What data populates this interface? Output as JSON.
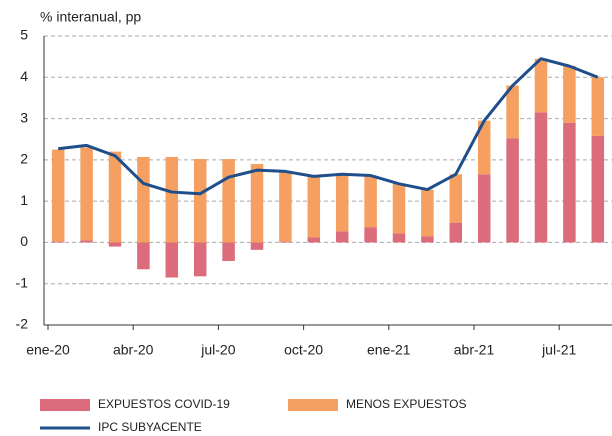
{
  "chart_data": {
    "type": "bar",
    "stacked": true,
    "y_label": "% interanual, pp",
    "categories": [
      "ene-20",
      null,
      null,
      "abr-20",
      null,
      null,
      "jul-20",
      null,
      null,
      "oct-20",
      null,
      null,
      "ene-21",
      null,
      null,
      "abr-21",
      null,
      null,
      "jul-21",
      null
    ],
    "series": [
      {
        "name": "EXPUESTOS COVID-19",
        "color": "#dc6b7c",
        "type": "bar",
        "values": [
          0.02,
          0.05,
          -0.1,
          -0.65,
          -0.85,
          -0.82,
          -0.45,
          -0.18,
          0.02,
          0.12,
          0.27,
          0.37,
          0.22,
          0.15,
          0.48,
          1.65,
          2.52,
          3.15,
          2.9,
          2.58
        ]
      },
      {
        "name": "MENOS EXPUESTOS",
        "color": "#f5a061",
        "type": "bar",
        "values": [
          2.23,
          2.25,
          2.2,
          2.07,
          2.07,
          2.02,
          2.02,
          1.9,
          1.7,
          1.5,
          1.38,
          1.25,
          1.2,
          1.13,
          1.17,
          1.3,
          1.28,
          1.3,
          1.38,
          1.42
        ]
      },
      {
        "name": "IPC SUBYACENTE",
        "color": "#1f4e8c",
        "type": "line",
        "values": [
          2.27,
          2.35,
          2.1,
          1.43,
          1.22,
          1.18,
          1.58,
          1.75,
          1.72,
          1.6,
          1.65,
          1.62,
          1.42,
          1.28,
          1.65,
          2.95,
          3.8,
          4.45,
          4.27,
          4.0
        ]
      }
    ],
    "ylim": [
      -2,
      5
    ],
    "yticks": [
      {
        "value": -2,
        "label": "-2"
      },
      {
        "value": -1,
        "label": "-1"
      },
      0,
      1,
      2,
      3,
      4,
      5
    ],
    "grid": true
  }
}
